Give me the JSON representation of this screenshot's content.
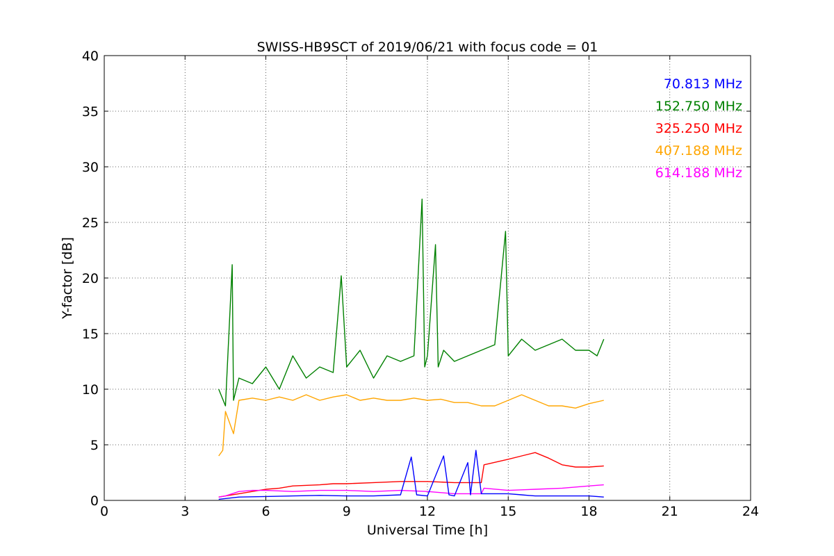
{
  "chart_data": {
    "type": "line",
    "title": "SWISS-HB9SCT of 2019/06/21 with focus code = 01",
    "xlabel": "Universal Time [h]",
    "ylabel": "Y-factor [dB]",
    "xlim": [
      0,
      24
    ],
    "ylim": [
      0,
      40
    ],
    "xticks": [
      0,
      3,
      6,
      9,
      12,
      15,
      18,
      21,
      24
    ],
    "yticks": [
      0,
      5,
      10,
      15,
      20,
      25,
      30,
      35,
      40
    ],
    "xtick_labels": [
      "0",
      "3",
      "6",
      "9",
      "12",
      "15",
      "18",
      "21",
      "24"
    ],
    "ytick_labels": [
      "0",
      "5",
      "10",
      "15",
      "20",
      "25",
      "30",
      "35",
      "40"
    ],
    "grid": true,
    "legend_position": "top-right",
    "series": [
      {
        "name": "70.813 MHz",
        "color": "#0000ff",
        "x": [
          4.25,
          5.0,
          6.0,
          7.0,
          8.0,
          9.0,
          10.0,
          11.0,
          11.4,
          11.6,
          12.0,
          12.6,
          12.8,
          13.0,
          13.5,
          13.6,
          13.8,
          14.0,
          15.0,
          15.5,
          16.0,
          17.0,
          18.0,
          18.55
        ],
        "y": [
          0.1,
          0.3,
          0.35,
          0.4,
          0.45,
          0.4,
          0.4,
          0.5,
          3.9,
          0.5,
          0.4,
          4.0,
          0.5,
          0.4,
          3.4,
          0.5,
          4.5,
          0.6,
          0.6,
          0.5,
          0.4,
          0.4,
          0.4,
          0.3
        ]
      },
      {
        "name": "152.750 MHz",
        "color": "#008000",
        "x": [
          4.25,
          4.5,
          4.75,
          4.8,
          5.0,
          5.5,
          6.0,
          6.5,
          7.0,
          7.5,
          8.0,
          8.5,
          8.8,
          9.0,
          9.5,
          10.0,
          10.5,
          11.0,
          11.5,
          11.8,
          11.9,
          12.0,
          12.3,
          12.4,
          12.6,
          13.0,
          13.5,
          14.0,
          14.5,
          14.9,
          15.0,
          15.5,
          16.0,
          16.5,
          17.0,
          17.5,
          18.0,
          18.3,
          18.55
        ],
        "y": [
          10.0,
          8.5,
          21.2,
          9.0,
          11.0,
          10.5,
          12.0,
          10.0,
          13.0,
          11.0,
          12.0,
          11.5,
          20.2,
          12.0,
          13.5,
          11.0,
          13.0,
          12.5,
          13.0,
          27.1,
          12.0,
          13.0,
          23.0,
          12.0,
          13.5,
          12.5,
          13.0,
          13.5,
          14.0,
          24.2,
          13.0,
          14.5,
          13.5,
          14.0,
          14.5,
          13.5,
          13.5,
          13.0,
          14.5
        ]
      },
      {
        "name": "325.250 MHz",
        "color": "#ff0000",
        "x": [
          4.25,
          4.5,
          5.0,
          5.5,
          6.0,
          6.5,
          7.0,
          8.0,
          8.5,
          9.0,
          10.0,
          11.0,
          12.0,
          13.0,
          14.0,
          14.1,
          15.0,
          15.5,
          16.0,
          16.5,
          17.0,
          17.5,
          18.0,
          18.55
        ],
        "y": [
          0.3,
          0.4,
          0.6,
          0.8,
          1.0,
          1.1,
          1.3,
          1.4,
          1.5,
          1.5,
          1.6,
          1.7,
          1.7,
          1.6,
          1.6,
          3.2,
          3.7,
          4.0,
          4.3,
          3.8,
          3.2,
          3.0,
          3.0,
          3.1
        ]
      },
      {
        "name": "407.188 MHz",
        "color": "#ffa500",
        "x": [
          4.25,
          4.4,
          4.5,
          4.8,
          5.0,
          5.5,
          6.0,
          6.5,
          7.0,
          7.5,
          8.0,
          8.5,
          9.0,
          9.5,
          10.0,
          10.5,
          11.0,
          11.5,
          12.0,
          12.5,
          13.0,
          13.5,
          14.0,
          14.5,
          15.0,
          15.5,
          16.0,
          16.5,
          17.0,
          17.5,
          18.0,
          18.55
        ],
        "y": [
          4.0,
          4.5,
          8.0,
          6.0,
          9.0,
          9.2,
          9.0,
          9.3,
          9.0,
          9.5,
          9.0,
          9.3,
          9.5,
          9.0,
          9.2,
          9.0,
          9.0,
          9.2,
          9.0,
          9.1,
          8.8,
          8.8,
          8.5,
          8.5,
          9.0,
          9.5,
          9.0,
          8.5,
          8.5,
          8.3,
          8.7,
          9.0
        ]
      },
      {
        "name": "614.188 MHz",
        "color": "#ff00ff",
        "x": [
          4.25,
          4.5,
          5.0,
          5.5,
          6.0,
          7.0,
          8.0,
          9.0,
          10.0,
          11.0,
          12.0,
          13.0,
          14.0,
          14.1,
          15.0,
          16.0,
          17.0,
          18.0,
          18.55
        ],
        "y": [
          0.3,
          0.4,
          0.8,
          0.9,
          0.9,
          0.8,
          0.9,
          0.9,
          0.8,
          0.9,
          0.8,
          0.6,
          0.6,
          1.1,
          0.9,
          1.0,
          1.1,
          1.3,
          1.4
        ]
      }
    ]
  }
}
